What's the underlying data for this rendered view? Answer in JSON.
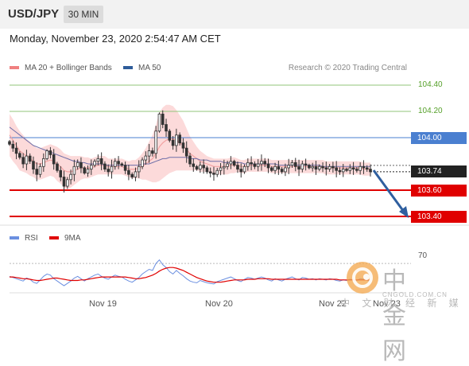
{
  "header": {
    "pair": "USD/JPY",
    "timeframe": "30 MIN"
  },
  "timestamp": "Monday, November 23, 2020 2:54:47 AM CET",
  "legend": [
    {
      "label": "MA 20 + Bollinger Bands",
      "color": "#f08080"
    },
    {
      "label": "MA 50",
      "color": "#2e5c9a"
    }
  ],
  "credit": "Research © 2020 Trading Central",
  "colors": {
    "bands": "#fcdada",
    "ma20": "#f2a3a3",
    "ma50": "#6f6fa8",
    "candle": "#333333",
    "support": "#e00000",
    "resistance": "#92c47a",
    "pivot": "#4a7fd0",
    "last": "#222222",
    "arrow": "#2f5f9f",
    "rsi": "#6b8fe0",
    "rsi_ma": "#e00000"
  },
  "price_labels": [
    {
      "value": 104.4,
      "text": "104.40",
      "kind": "resistance"
    },
    {
      "value": 104.2,
      "text": "104.20",
      "kind": "resistance"
    },
    {
      "value": 104.0,
      "text": "104.00",
      "kind": "pivot"
    },
    {
      "value": 103.74,
      "text": "103.74",
      "kind": "last"
    },
    {
      "value": 103.6,
      "text": "103.60",
      "kind": "support"
    },
    {
      "value": 103.4,
      "text": "103.40",
      "kind": "support"
    }
  ],
  "rsi_legend": [
    {
      "label": "RSI",
      "color": "#6b8fe0"
    },
    {
      "label": "9MA",
      "color": "#e00000"
    }
  ],
  "rsi_level": "70",
  "x_ticks": [
    "Nov 19",
    "Nov 20",
    "Nov 22",
    "Nov 23"
  ],
  "watermark": {
    "cn": "中金网",
    "url": "CNGOLD.COM.CN",
    "sub": "中 文 财 经 新 媒 体"
  },
  "chart_data": {
    "type": "candlestick",
    "ylim": [
      103.36,
      104.46
    ],
    "support": [
      103.6,
      103.4
    ],
    "resistance": [
      104.4,
      104.2
    ],
    "pivot": 104.0,
    "last": 103.74,
    "close": [
      103.95,
      103.92,
      103.88,
      103.85,
      103.8,
      103.86,
      103.82,
      103.76,
      103.72,
      103.78,
      103.84,
      103.9,
      103.87,
      103.8,
      103.75,
      103.7,
      103.63,
      103.68,
      103.72,
      103.78,
      103.81,
      103.77,
      103.73,
      103.76,
      103.79,
      103.82,
      103.84,
      103.8,
      103.76,
      103.74,
      103.78,
      103.82,
      103.8,
      103.79,
      103.75,
      103.72,
      103.7,
      103.74,
      103.78,
      103.83,
      103.86,
      103.9,
      103.88,
      104.05,
      104.18,
      104.1,
      104.05,
      103.98,
      103.94,
      104.02,
      103.96,
      103.92,
      103.86,
      103.8,
      103.78,
      103.76,
      103.79,
      103.77,
      103.74,
      103.73,
      103.72,
      103.75,
      103.77,
      103.78,
      103.8,
      103.82,
      103.79,
      103.76,
      103.74,
      103.78,
      103.81,
      103.8,
      103.78,
      103.8,
      103.82,
      103.8,
      103.77,
      103.75,
      103.78,
      103.76,
      103.74,
      103.77,
      103.79,
      103.81,
      103.78,
      103.76,
      103.8,
      103.79,
      103.77,
      103.78,
      103.76,
      103.78,
      103.77,
      103.76,
      103.78,
      103.77,
      103.75,
      103.74,
      103.76,
      103.75,
      103.77,
      103.76,
      103.75,
      103.78,
      103.77,
      103.76,
      103.74
    ],
    "ma20": [
      104.02,
      103.98,
      103.94,
      103.9,
      103.88,
      103.86,
      103.84,
      103.82,
      103.8,
      103.8,
      103.81,
      103.82,
      103.83,
      103.82,
      103.8,
      103.78,
      103.75,
      103.74,
      103.74,
      103.75,
      103.76,
      103.77,
      103.77,
      103.77,
      103.77,
      103.78,
      103.79,
      103.79,
      103.79,
      103.78,
      103.78,
      103.78,
      103.78,
      103.78,
      103.77,
      103.76,
      103.76,
      103.76,
      103.77,
      103.78,
      103.8,
      103.82,
      103.84,
      103.88,
      103.93,
      103.96,
      103.98,
      103.99,
      103.99,
      103.98,
      103.96,
      103.94,
      103.91,
      103.88,
      103.86,
      103.84,
      103.82,
      103.81,
      103.8,
      103.79,
      103.78,
      103.78,
      103.78,
      103.78,
      103.78,
      103.79,
      103.79,
      103.79,
      103.78,
      103.78,
      103.79,
      103.79,
      103.79,
      103.79,
      103.79,
      103.79,
      103.79,
      103.78,
      103.78,
      103.78,
      103.78,
      103.78,
      103.78,
      103.78,
      103.78,
      103.78,
      103.78,
      103.78,
      103.78,
      103.78,
      103.78,
      103.78,
      103.78,
      103.77,
      103.77,
      103.77,
      103.77,
      103.77,
      103.77,
      103.77,
      103.77,
      103.77,
      103.77,
      103.77,
      103.76,
      103.76,
      103.76
    ],
    "ma50": [
      104.08,
      104.06,
      104.04,
      104.02,
      104.0,
      103.98,
      103.96,
      103.94,
      103.93,
      103.92,
      103.91,
      103.9,
      103.89,
      103.88,
      103.87,
      103.86,
      103.85,
      103.84,
      103.83,
      103.82,
      103.82,
      103.81,
      103.81,
      103.8,
      103.8,
      103.8,
      103.8,
      103.8,
      103.79,
      103.79,
      103.79,
      103.79,
      103.79,
      103.79,
      103.79,
      103.79,
      103.79,
      103.79,
      103.79,
      103.8,
      103.8,
      103.8,
      103.81,
      103.82,
      103.83,
      103.84,
      103.84,
      103.85,
      103.85,
      103.85,
      103.85,
      103.85,
      103.85,
      103.84,
      103.84,
      103.84,
      103.83,
      103.83,
      103.83,
      103.82,
      103.82,
      103.82,
      103.82,
      103.81,
      103.81,
      103.81,
      103.81,
      103.81,
      103.81,
      103.8,
      103.8,
      103.8,
      103.8,
      103.8,
      103.8,
      103.8,
      103.8,
      103.8,
      103.8,
      103.79,
      103.79,
      103.79,
      103.79,
      103.79,
      103.79,
      103.79,
      103.79,
      103.79,
      103.79,
      103.79,
      103.79,
      103.79,
      103.78,
      103.78,
      103.78,
      103.78,
      103.78,
      103.78,
      103.78,
      103.78,
      103.78,
      103.78,
      103.78,
      103.78,
      103.78,
      103.78,
      103.78
    ],
    "band_width": [
      0.16,
      0.16,
      0.15,
      0.15,
      0.14,
      0.13,
      0.13,
      0.12,
      0.12,
      0.12,
      0.12,
      0.12,
      0.12,
      0.12,
      0.13,
      0.13,
      0.13,
      0.13,
      0.12,
      0.11,
      0.1,
      0.09,
      0.08,
      0.08,
      0.07,
      0.07,
      0.07,
      0.07,
      0.07,
      0.06,
      0.06,
      0.06,
      0.06,
      0.06,
      0.06,
      0.06,
      0.07,
      0.07,
      0.08,
      0.1,
      0.12,
      0.15,
      0.18,
      0.22,
      0.26,
      0.27,
      0.27,
      0.26,
      0.25,
      0.23,
      0.21,
      0.19,
      0.16,
      0.13,
      0.11,
      0.09,
      0.08,
      0.07,
      0.06,
      0.06,
      0.06,
      0.06,
      0.06,
      0.06,
      0.06,
      0.06,
      0.06,
      0.05,
      0.05,
      0.05,
      0.05,
      0.05,
      0.05,
      0.05,
      0.05,
      0.05,
      0.05,
      0.05,
      0.05,
      0.05,
      0.05,
      0.05,
      0.05,
      0.05,
      0.05,
      0.05,
      0.05,
      0.05,
      0.05,
      0.05,
      0.05,
      0.05,
      0.05,
      0.05,
      0.05,
      0.05,
      0.05,
      0.05,
      0.05,
      0.05,
      0.05,
      0.05,
      0.05,
      0.05,
      0.05,
      0.05,
      0.05
    ],
    "rsi": {
      "ylim": [
        20,
        85
      ],
      "level": 70,
      "values": [
        48,
        46,
        44,
        42,
        40,
        45,
        43,
        38,
        36,
        42,
        48,
        52,
        50,
        44,
        40,
        36,
        32,
        36,
        40,
        45,
        48,
        44,
        40,
        44,
        47,
        50,
        52,
        48,
        45,
        43,
        47,
        50,
        48,
        47,
        43,
        40,
        38,
        42,
        46,
        52,
        56,
        60,
        58,
        70,
        76,
        68,
        63,
        56,
        52,
        58,
        53,
        49,
        44,
        40,
        38,
        37,
        41,
        39,
        37,
        36,
        35,
        39,
        41,
        43,
        45,
        47,
        44,
        41,
        39,
        43,
        46,
        45,
        43,
        45,
        47,
        45,
        42,
        40,
        44,
        42,
        40,
        43,
        45,
        47,
        44,
        42,
        46,
        45,
        43,
        44,
        42,
        44,
        43,
        42,
        44,
        43,
        41,
        40,
        42,
        41,
        43,
        42,
        41,
        44,
        43,
        42,
        39
      ],
      "ma": [
        47,
        47,
        46,
        45,
        44,
        44,
        43,
        42,
        41,
        41,
        42,
        43,
        44,
        45,
        45,
        44,
        43,
        42,
        41,
        41,
        41,
        42,
        42,
        43,
        44,
        45,
        46,
        47,
        47,
        47,
        47,
        47,
        47,
        47,
        47,
        46,
        45,
        44,
        44,
        45,
        46,
        48,
        50,
        53,
        57,
        60,
        62,
        63,
        63,
        62,
        60,
        58,
        55,
        52,
        49,
        46,
        44,
        42,
        40,
        39,
        38,
        38,
        38,
        39,
        40,
        41,
        42,
        42,
        42,
        42,
        43,
        43,
        43,
        44,
        44,
        44,
        44,
        43,
        43,
        43,
        43,
        43,
        43,
        43,
        43,
        43,
        43,
        43,
        43,
        43,
        43,
        43,
        43,
        43,
        43,
        43,
        43,
        42,
        42,
        42,
        42,
        42,
        42,
        42,
        42,
        42,
        42
      ]
    }
  }
}
